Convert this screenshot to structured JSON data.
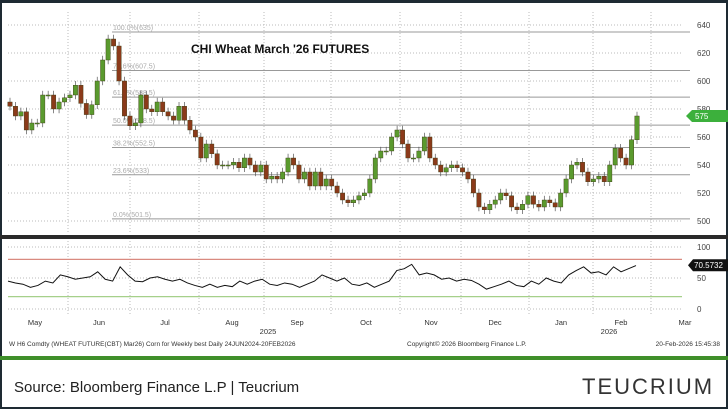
{
  "chart_data": [
    {
      "type": "candlestick",
      "title": "CHI Wheat March '26 FUTURES",
      "ylim": [
        495,
        645
      ],
      "yticks": [
        "640",
        "620",
        "600",
        "580",
        "560",
        "540",
        "520",
        "500"
      ],
      "ytick_values": [
        640,
        620,
        600,
        580,
        560,
        540,
        520,
        500
      ],
      "last_price_label": "575",
      "grid": true,
      "fib_levels": [
        {
          "label": "100.0%(635)",
          "value": 635
        },
        {
          "label": "78.6%(607.5)",
          "value": 607.5
        },
        {
          "label": "61.8%(588.5)",
          "value": 588.5
        },
        {
          "label": "50.0%(568.5)",
          "value": 568.5
        },
        {
          "label": "38.2%(552.5)",
          "value": 552.5
        },
        {
          "label": "23.6%(533)",
          "value": 533
        },
        {
          "label": "0.0%(501.5)",
          "value": 501.5
        }
      ],
      "closes": [
        582,
        575,
        578,
        565,
        570,
        570,
        590,
        590,
        580,
        585,
        588,
        590,
        597,
        584,
        576,
        583,
        600,
        615,
        630,
        625,
        600,
        575,
        568,
        570,
        590,
        580,
        578,
        585,
        578,
        575,
        572,
        582,
        572,
        565,
        560,
        545,
        555,
        548,
        540,
        540,
        540,
        542,
        538,
        545,
        540,
        535,
        540,
        530,
        532,
        530,
        535,
        545,
        540,
        530,
        535,
        525,
        535,
        525,
        530,
        525,
        520,
        515,
        513,
        515,
        518,
        520,
        530,
        545,
        550,
        550,
        560,
        565,
        555,
        545,
        545,
        550,
        560,
        545,
        540,
        535,
        538,
        540,
        538,
        535,
        530,
        520,
        510,
        508,
        512,
        515,
        520,
        518,
        510,
        508,
        512,
        518,
        512,
        510,
        515,
        513,
        510,
        520,
        530,
        540,
        542,
        535,
        528,
        530,
        532,
        528,
        540,
        552,
        545,
        540,
        558,
        575
      ]
    },
    {
      "type": "line",
      "ylim": [
        0,
        100
      ],
      "yticks": [
        "100",
        "50",
        "0"
      ],
      "ytick_values": [
        100,
        50,
        0
      ],
      "overbought": 80,
      "oversold": 20,
      "last_value_label": "70.5732",
      "values": [
        45,
        42,
        40,
        35,
        38,
        45,
        42,
        55,
        52,
        48,
        50,
        52,
        60,
        48,
        45,
        68,
        55,
        45,
        44,
        50,
        52,
        48,
        45,
        48,
        42,
        38,
        35,
        40,
        35,
        38,
        36,
        45,
        40,
        45,
        48,
        40,
        38,
        42,
        40,
        35,
        40,
        45,
        55,
        50,
        45,
        50,
        40,
        38,
        42,
        35,
        40,
        45,
        62,
        65,
        72,
        55,
        58,
        55,
        48,
        50,
        45,
        48,
        46,
        40,
        32,
        36,
        40,
        45,
        38,
        36,
        45,
        40,
        50,
        45,
        42,
        55,
        62,
        68,
        58,
        60,
        55,
        68,
        60,
        65,
        70
      ]
    }
  ],
  "x_axis": {
    "months": [
      "May",
      "Jun",
      "Jul",
      "Aug",
      "Sep",
      "Oct",
      "Nov",
      "Dec",
      "Jan",
      "Feb",
      "Mar"
    ],
    "years": [
      "2025",
      "2026"
    ]
  },
  "footer": {
    "left": "W H6 Comdty (WHEAT FUTURE(CBT) Mar26) Corn for Weekly best Daily 24JUN2024-20FEB2026",
    "center": "Copyright© 2026 Bloomberg Finance L.P.",
    "right": "20-Feb-2026 15:45:38"
  },
  "source": "Source: Bloomberg Finance L.P | Teucrium",
  "logo": "TEUCRIUM",
  "colors": {
    "up": "#5a9a2e",
    "down": "#8b3a1a",
    "neutral_body": "#8a7a2a",
    "rsi_line": "#111111",
    "overbought": "#d98a80",
    "oversold": "#a6d08a",
    "price_tag": "#3cb03c",
    "brand_green": "#3f8f2a"
  }
}
